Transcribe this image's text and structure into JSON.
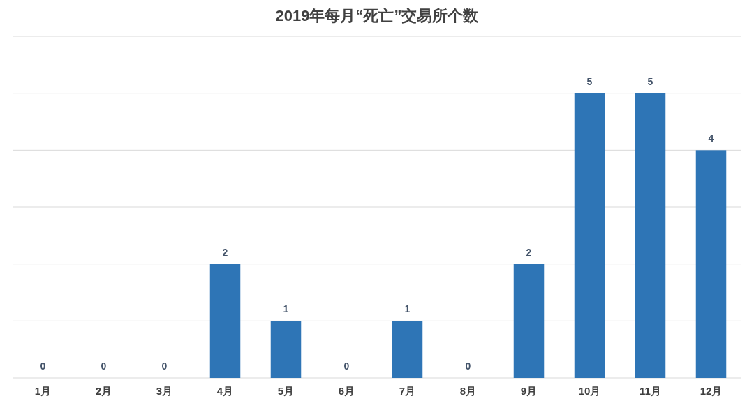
{
  "chart_data": {
    "type": "bar",
    "title": "2019年每月“死亡”交易所个数",
    "categories": [
      "1月",
      "2月",
      "3月",
      "4月",
      "5月",
      "6月",
      "7月",
      "8月",
      "9月",
      "10月",
      "11月",
      "12月"
    ],
    "values": [
      0,
      0,
      0,
      2,
      1,
      0,
      1,
      0,
      2,
      5,
      5,
      4
    ],
    "color": "#2e75b6",
    "ylim": [
      0,
      6
    ],
    "yticks": [
      {
        "value": 0,
        "label": null
      },
      {
        "value": 1,
        "label": null
      },
      {
        "value": 2,
        "label": null
      },
      {
        "value": 3,
        "label": null
      },
      {
        "value": 4,
        "label": null
      },
      {
        "value": 5,
        "label": null
      },
      {
        "value": 6,
        "label": null
      }
    ],
    "grid": "y",
    "tick_labels": "x",
    "data_labels": true
  }
}
